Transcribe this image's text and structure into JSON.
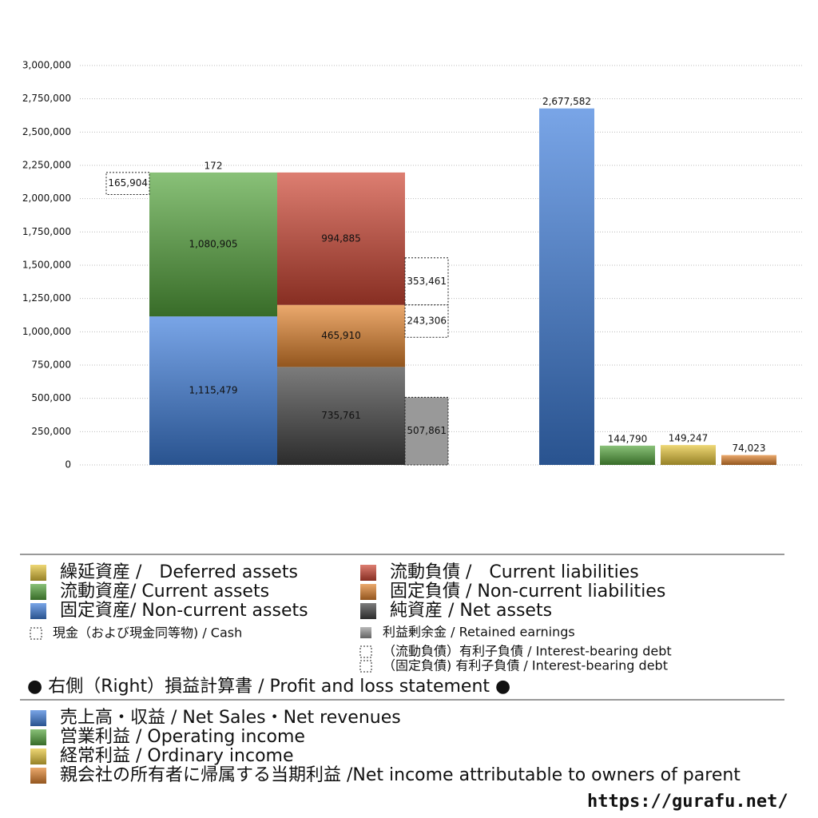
{
  "chart_data": {
    "type": "bar",
    "ylim": [
      0,
      3000000
    ],
    "yticks": [
      0,
      {
        "value": 250000,
        "label": "250,000"
      },
      {
        "value": 500000,
        "label": "500,000"
      },
      {
        "value": 750000,
        "label": "750,000"
      },
      {
        "value": 1000000,
        "label": "1,000,000"
      },
      {
        "value": 1250000,
        "label": "1,250,000"
      },
      {
        "value": 1500000,
        "label": "1,500,000"
      },
      {
        "value": 1750000,
        "label": "1,750,000"
      },
      {
        "value": 2000000,
        "label": "2,000,000"
      },
      {
        "value": 2250000,
        "label": "2,250,000"
      },
      {
        "value": 2500000,
        "label": "2,500,000"
      },
      {
        "value": 2750000,
        "label": "2,750,000"
      },
      {
        "value": 3000000,
        "label": "3,000,000"
      }
    ],
    "grid": true,
    "assets": [
      {
        "name": "固定資産/ Non-current assets",
        "color": "#3f7fdc",
        "values": [
          1115479
        ],
        "value_labels": [
          "1,115,479"
        ]
      },
      {
        "name": "流動資産/ Current assets",
        "color": "#56a63e",
        "values": [
          1080905
        ],
        "value_labels": [
          "1,080,905"
        ]
      },
      {
        "name": "繰延資産 /　Deferred assets",
        "color": "#e6c63a",
        "values": [
          172
        ]
      }
    ],
    "liabilities": [
      {
        "name": "純資産 / Net assets",
        "color": "#444444",
        "values": [
          735761
        ],
        "value_labels": [
          "735,761"
        ]
      },
      {
        "name": "固定負債 / Non-current liabilities",
        "color": "#e2842e",
        "values": [
          465910
        ],
        "value_labels": [
          "465,910"
        ]
      },
      {
        "name": "流動負債 /　Current liabilities",
        "color": "#cf4634",
        "values": [
          994885
        ],
        "value_labels": [
          "994,885"
        ]
      }
    ],
    "notes": [
      {
        "name": "現金（および現金同等物) / Cash",
        "color": "#ffffff",
        "values": [
          165904
        ],
        "value_labels": [
          "165,904"
        ]
      },
      {
        "name": "利益剰余金 / Retained earnings",
        "color": "#999999",
        "values": [
          507861
        ],
        "value_labels": [
          "507,861"
        ]
      },
      {
        "name": "（流動負債）有利子負債 / Interest-bearing debt",
        "color": "#ffffff",
        "values": [
          353461
        ],
        "value_labels": [
          "353,461"
        ]
      },
      {
        "name": "（固定負債) 有利子負債 / Interest-bearing debt",
        "color": "#ffffff",
        "values": [
          243306
        ],
        "value_labels": [
          "243,306"
        ]
      }
    ],
    "pl_title": "● 右側（Right）損益計算書 / Profit and loss statement ●",
    "pl": [
      {
        "name": "売上高・収益 / Net Sales・Net revenues",
        "color": "#3f7fdc",
        "values": [
          2677582
        ],
        "value_labels": [
          "2,677,582"
        ]
      },
      {
        "name": "営業利益 / Operating income",
        "color": "#56a63e",
        "values": [
          144790
        ],
        "value_labels": [
          "144,790"
        ]
      },
      {
        "name": "経常利益 / Ordinary income",
        "color": "#e6c63a",
        "values": [
          149247
        ],
        "value_labels": [
          "149,247"
        ]
      },
      {
        "name": "親会社の所有者に帰属する当期利益 /Net income attributable to owners of parent",
        "color": "#e2842e",
        "values": [
          74023
        ],
        "value_labels": [
          "74,023"
        ]
      }
    ],
    "source": "https://gurafu.net/"
  }
}
